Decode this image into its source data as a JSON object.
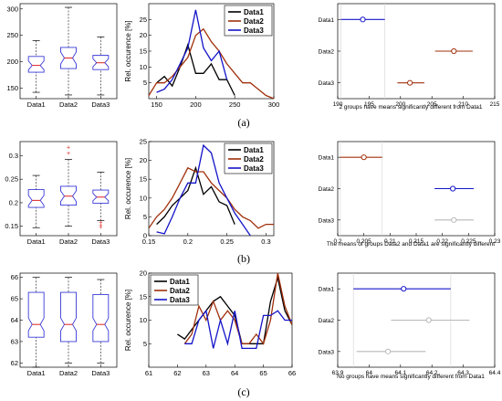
{
  "colors": {
    "data1": "#000000",
    "data2": "#a0300c",
    "data3": "#1414c8",
    "box": "#3a3ad8",
    "median": "#e02020",
    "whisker": "#333333",
    "gray": "#b8b8b8",
    "grid": "#d9d9d9"
  },
  "chart_data": [
    {
      "id": "a",
      "row_label": "(a)",
      "box": {
        "type": "box",
        "categories": [
          "Data1",
          "Data2",
          "Data3"
        ],
        "ylim": [
          130,
          310
        ],
        "yticks": [
          "150",
          "200",
          "250",
          "300"
        ],
        "stats": [
          {
            "whislo": 142,
            "q1": 180,
            "med": 193,
            "q3": 210,
            "whishi": 240,
            "outliers": []
          },
          {
            "whislo": 137,
            "q1": 187,
            "med": 207,
            "q3": 227,
            "whishi": 303,
            "outliers": []
          },
          {
            "whislo": 137,
            "q1": 185,
            "med": 198,
            "q3": 212,
            "whishi": 247,
            "outliers": []
          }
        ]
      },
      "hist": {
        "type": "line",
        "ylabel": "Rel. occurence [%]",
        "xlim": [
          140,
          300
        ],
        "ylim": [
          0,
          30
        ],
        "xticks": [
          "150",
          "200",
          "250",
          "300"
        ],
        "yticks": [
          "5",
          "10",
          "15",
          "20",
          "25"
        ],
        "legend": [
          "Data1",
          "Data2",
          "Data3"
        ],
        "series": [
          {
            "name": "Data1",
            "x": [
              150,
              160,
              170,
              180,
              190,
              200,
              210,
              220,
              230,
              240,
              250
            ],
            "y": [
              5,
              7,
              4,
              10,
              17,
              8,
              8,
              11,
              6,
              6,
              1
            ]
          },
          {
            "name": "Data2",
            "x": [
              140,
              150,
              160,
              170,
              180,
              190,
              200,
              210,
              220,
              230,
              240,
              250,
              260,
              270,
              280,
              290,
              300
            ],
            "y": [
              1,
              5,
              5,
              7,
              10,
              13,
              20,
              22,
              18,
              15,
              11,
              8,
              5,
              5,
              3,
              1,
              0
            ]
          },
          {
            "name": "Data3",
            "x": [
              150,
              160,
              170,
              180,
              190,
              200,
              210,
              220,
              230,
              240
            ],
            "y": [
              2,
              3,
              6,
              11,
              16,
              28,
              16,
              12,
              15,
              6
            ]
          }
        ]
      },
      "ci": {
        "type": "scatter",
        "categories": [
          "Data1",
          "Data2",
          "Data3"
        ],
        "xlim": [
          190,
          215
        ],
        "xticks": [
          "190",
          "195",
          "200",
          "205",
          "210",
          "215"
        ],
        "title": "2 groups have means significantly different from Data1",
        "points": [
          {
            "mean": 194,
            "lo": 190.5,
            "hi": 197.5,
            "color": "data3"
          },
          {
            "mean": 208.5,
            "lo": 205.5,
            "hi": 211.5,
            "color": "data2"
          },
          {
            "mean": 201.5,
            "lo": 199.5,
            "hi": 203.8,
            "color": "data2"
          }
        ]
      }
    },
    {
      "id": "b",
      "row_label": "(b)",
      "box": {
        "type": "box",
        "categories": [
          "Data1",
          "Data2",
          "Data3"
        ],
        "ylim": [
          0.13,
          0.33
        ],
        "yticks": [
          "0.15",
          "0.2",
          "0.25",
          "0.3"
        ],
        "stats": [
          {
            "whislo": 0.147,
            "q1": 0.19,
            "med": 0.205,
            "q3": 0.228,
            "whishi": 0.258,
            "outliers": []
          },
          {
            "whislo": 0.15,
            "q1": 0.195,
            "med": 0.214,
            "q3": 0.235,
            "whishi": 0.292,
            "outliers": [
              0.306,
              0.318
            ]
          },
          {
            "whislo": 0.162,
            "q1": 0.199,
            "med": 0.212,
            "q3": 0.227,
            "whishi": 0.265,
            "outliers": [
              0.148,
              0.153,
              0.158
            ]
          }
        ]
      },
      "hist": {
        "type": "line",
        "ylabel": "Rel. occurence [%]",
        "xlim": [
          0.15,
          0.31
        ],
        "ylim": [
          0,
          25
        ],
        "xticks": [
          "0.15",
          "0.2",
          "0.25",
          "0.3"
        ],
        "yticks": [
          "0",
          "5",
          "10",
          "15",
          "20",
          "25"
        ],
        "legend": [
          "Data1",
          "Data2",
          "Data3"
        ],
        "series": [
          {
            "name": "Data1",
            "x": [
              0.16,
              0.17,
              0.18,
              0.19,
              0.2,
              0.21,
              0.22,
              0.23,
              0.24,
              0.25,
              0.26
            ],
            "y": [
              3,
              5,
              8,
              10,
              12,
              18,
              11,
              13,
              9,
              8,
              3
            ]
          },
          {
            "name": "Data2",
            "x": [
              0.15,
              0.16,
              0.17,
              0.18,
              0.19,
              0.2,
              0.21,
              0.22,
              0.23,
              0.24,
              0.25,
              0.26,
              0.27,
              0.28,
              0.29,
              0.3,
              0.31
            ],
            "y": [
              2,
              5,
              7,
              10,
              14,
              18,
              17,
              17,
              14,
              12,
              10,
              7,
              5,
              4,
              2,
              3,
              3
            ]
          },
          {
            "name": "Data3",
            "x": [
              0.16,
              0.17,
              0.18,
              0.19,
              0.2,
              0.21,
              0.22,
              0.23,
              0.24,
              0.25,
              0.26,
              0.27,
              0.28
            ],
            "y": [
              1,
              0.5,
              5,
              10,
              14,
              14,
              24,
              22,
              14,
              10,
              6,
              3,
              0
            ]
          }
        ]
      },
      "ci": {
        "type": "scatter",
        "categories": [
          "Data1",
          "Data2",
          "Data3"
        ],
        "xlim": [
          0.2,
          0.23
        ],
        "xticks": [
          "0.2",
          "0.205",
          "0.21",
          "0.215",
          "0.22",
          "0.225",
          "0.23"
        ],
        "title": "The means of groups Data2 and Data1 are significantly different",
        "points": [
          {
            "mean": 0.205,
            "lo": 0.2005,
            "hi": 0.2085,
            "color": "data2"
          },
          {
            "mean": 0.222,
            "lo": 0.2185,
            "hi": 0.226,
            "color": "data3"
          },
          {
            "mean": 0.2222,
            "lo": 0.2185,
            "hi": 0.226,
            "color": "gray"
          }
        ]
      }
    },
    {
      "id": "c",
      "row_label": "(c)",
      "box": {
        "type": "box",
        "categories": [
          "Data1",
          "Data2",
          "Data3"
        ],
        "ylim": [
          61.8,
          66.2
        ],
        "yticks": [
          "62",
          "63",
          "64",
          "65",
          "66"
        ],
        "stats": [
          {
            "whislo": 61.8,
            "q1": 63.2,
            "med": 63.8,
            "q3": 65.3,
            "whishi": 66.0,
            "outliers": []
          },
          {
            "whislo": 62.0,
            "q1": 63.0,
            "med": 63.8,
            "q3": 65.3,
            "whishi": 66.0,
            "outliers": []
          },
          {
            "whislo": 62.0,
            "q1": 63.0,
            "med": 63.8,
            "q3": 65.2,
            "whishi": 65.9,
            "outliers": []
          }
        ]
      },
      "hist": {
        "type": "line",
        "ylabel": "Rel. occurence [%]",
        "xlim": [
          61,
          66
        ],
        "ylim": [
          0,
          20
        ],
        "xticks": [
          "61",
          "62",
          "63",
          "64",
          "65",
          "66"
        ],
        "yticks": [
          "5",
          "10",
          "15",
          "20"
        ],
        "legend": [
          "Data1",
          "Data2",
          "Data3"
        ],
        "series": [
          {
            "name": "Data1",
            "x": [
              62.0,
              62.25,
              62.5,
              62.75,
              63.0,
              63.25,
              63.5,
              63.75,
              64.0,
              64.25,
              64.5,
              64.75,
              65.0,
              65.25,
              65.5,
              65.75,
              66.0
            ],
            "y": [
              7,
              6,
              8,
              10,
              12,
              14,
              15,
              13,
              11,
              5,
              5,
              5,
              5,
              14,
              19,
              12,
              9
            ]
          },
          {
            "name": "Data2",
            "x": [
              62.25,
              62.5,
              62.75,
              63.0,
              63.25,
              63.5,
              63.75,
              64.0,
              64.25,
              64.5,
              64.75,
              65.0,
              65.25,
              65.5,
              65.75,
              66.0
            ],
            "y": [
              5,
              7,
              13,
              10,
              14,
              10,
              12,
              10,
              5,
              5,
              7,
              5,
              10,
              20,
              13,
              9
            ]
          },
          {
            "name": "Data3",
            "x": [
              62.25,
              62.5,
              62.75,
              63.0,
              63.25,
              63.5,
              63.75,
              64.0,
              64.25,
              64.5,
              64.75,
              65.0,
              65.25,
              65.5,
              65.75,
              66.0
            ],
            "y": [
              5,
              5,
              10,
              12,
              4,
              10,
              5,
              12,
              4,
              4,
              4,
              11,
              11,
              12,
              10,
              10
            ]
          }
        ]
      },
      "ci": {
        "type": "scatter",
        "categories": [
          "Data1",
          "Data2",
          "Data3"
        ],
        "xlim": [
          63.9,
          64.4
        ],
        "xticks": [
          "63.9",
          "64",
          "64.1",
          "64.2",
          "64.3",
          "64.4"
        ],
        "title": "No groups have means significantly different from Data1",
        "points": [
          {
            "mean": 64.11,
            "lo": 63.95,
            "hi": 64.26,
            "color": "data3"
          },
          {
            "mean": 64.19,
            "lo": 64.07,
            "hi": 64.32,
            "color": "gray"
          },
          {
            "mean": 64.06,
            "lo": 63.96,
            "hi": 64.18,
            "color": "gray"
          }
        ]
      }
    }
  ]
}
